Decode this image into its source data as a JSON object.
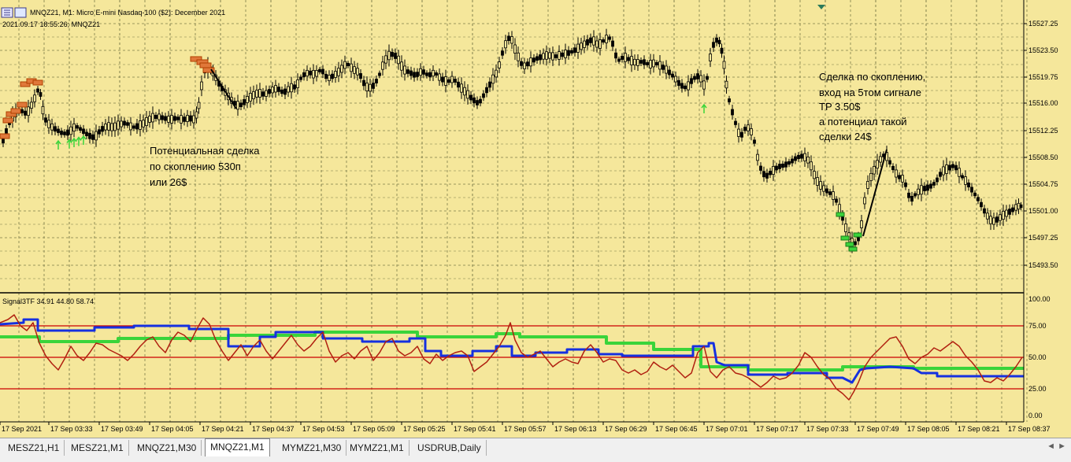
{
  "window": {
    "title": "MNQZ21, M1:  Micro E-mini Nasdaq-100 ($2): December 2021",
    "timestamp_line": "2021.09.17 18:55:26; MNQZ21"
  },
  "colors": {
    "background": "#f5e79b",
    "grid": "#7d7d4a",
    "candle": "#000000",
    "bull_marker": "#3ad43a",
    "bear_marker": "#e0783a",
    "red_line": "#c00000",
    "blue_line": "#1530e0",
    "green_line": "#3ad43a",
    "osc_red": "#b02010"
  },
  "price_axis": {
    "labels": [
      "15527.25",
      "15523.50",
      "15519.75",
      "15516.00",
      "15512.25",
      "15508.50",
      "15504.75",
      "15501.00",
      "15497.25",
      "15493.50"
    ]
  },
  "oscillator": {
    "label": "Signal3TF 34.91 44.80 58.74",
    "axis_labels": [
      "100.00",
      "75.00",
      "50.00",
      "25.00",
      "0.00"
    ]
  },
  "time_axis": {
    "labels": [
      "17 Sep 2021",
      "17 Sep 03:33",
      "17 Sep 03:49",
      "17 Sep 04:05",
      "17 Sep 04:21",
      "17 Sep 04:37",
      "17 Sep 04:53",
      "17 Sep 05:09",
      "17 Sep 05:25",
      "17 Sep 05:41",
      "17 Sep 05:57",
      "17 Sep 06:13",
      "17 Sep 06:29",
      "17 Sep 06:45",
      "17 Sep 07:01",
      "17 Sep 07:17",
      "17 Sep 07:33",
      "17 Sep 07:49",
      "17 Sep 08:05",
      "17 Sep 08:21",
      "17 Sep 08:37"
    ]
  },
  "annotations": {
    "left": [
      "Потенциальная сделка",
      "по скоплению 530п",
      "или   26$"
    ],
    "right": [
      "Сделка по скоплению,",
      "вход на 5том сигнале",
      "TP 3.50$",
      "а потенциал такой",
      "сделки 24$"
    ]
  },
  "tabs": [
    {
      "label": "MESZ21,H1",
      "active": false
    },
    {
      "label": "MESZ21,M1",
      "active": false
    },
    {
      "label": "MNQZ21,M30",
      "active": false
    },
    {
      "label": "MNQZ21,M1",
      "active": true
    },
    {
      "label": "MYMZ21,M30",
      "active": false
    },
    {
      "label": "MYMZ21,M1",
      "active": false
    },
    {
      "label": "USDRUB,Daily",
      "active": false
    }
  ],
  "tab_scroll_arrows": "◄ ►"
}
